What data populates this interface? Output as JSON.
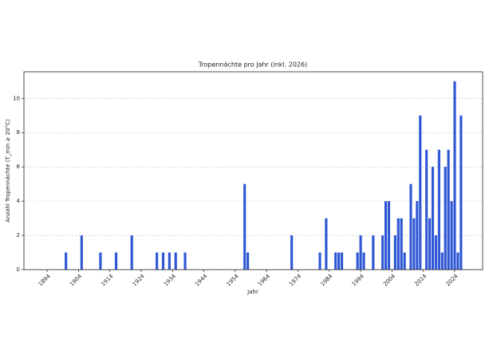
{
  "chart_data": {
    "type": "bar",
    "title": "Tropennächte pro Jahr (inkl. 2026)",
    "x_label": "Jahr",
    "y_label": "Anzahl Tropennächte (T_min ≥ 20°C)",
    "x": [
      1900,
      1905,
      1911,
      1916,
      1921,
      1929,
      1931,
      1933,
      1935,
      1938,
      1957,
      1958,
      1972,
      1981,
      1983,
      1986,
      1987,
      1988,
      1993,
      1994,
      1995,
      1998,
      2001,
      2002,
      2003,
      2005,
      2006,
      2007,
      2008,
      2010,
      2011,
      2012,
      2013,
      2015,
      2016,
      2017,
      2018,
      2019,
      2020,
      2021,
      2022,
      2023,
      2024,
      2025,
      2026
    ],
    "values": [
      1,
      2,
      1,
      1,
      2,
      1,
      1,
      1,
      1,
      1,
      5,
      1,
      2,
      1,
      3,
      1,
      1,
      1,
      1,
      2,
      1,
      2,
      2,
      4,
      4,
      2,
      3,
      3,
      1,
      5,
      3,
      4,
      9,
      7,
      3,
      6,
      2,
      7,
      1,
      6,
      7,
      4,
      11,
      1,
      9
    ],
    "color": "#2f57d4",
    "xlim": [
      1886.6,
      2032.9
    ],
    "xticks": [
      1894,
      1904,
      1914,
      1924,
      1934,
      1944,
      1954,
      1964,
      1974,
      1984,
      1994,
      2004,
      2014,
      2024
    ],
    "ylim": [
      0,
      11.55
    ],
    "yticks": [
      0,
      2,
      4,
      6,
      8,
      10
    ],
    "grid": true
  }
}
